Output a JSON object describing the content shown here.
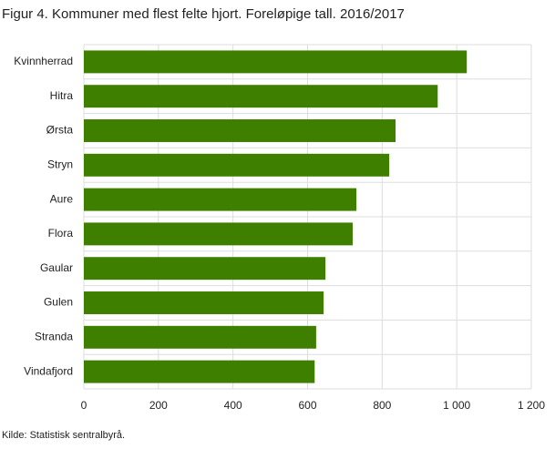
{
  "chart_data": {
    "type": "bar",
    "orientation": "horizontal",
    "title": "Figur 4. Kommuner med flest felte hjort. Foreløpige tall. 2016/2017",
    "source": "Kilde: Statistisk sentralbyrå.",
    "categories": [
      "Kvinnherrad",
      "Hitra",
      "Ørsta",
      "Stryn",
      "Aure",
      "Flora",
      "Gaular",
      "Gulen",
      "Stranda",
      "Vindafjord"
    ],
    "values": [
      1027,
      949,
      836,
      819,
      731,
      721,
      648,
      643,
      623,
      619
    ],
    "color": "#3f7f00",
    "xlim": [
      0,
      1200
    ],
    "xticks": [
      0,
      200,
      400,
      600,
      800,
      {
        "value": 1000,
        "label": "1 000"
      },
      {
        "value": 1200,
        "label": "1 200"
      }
    ],
    "grid": true
  }
}
